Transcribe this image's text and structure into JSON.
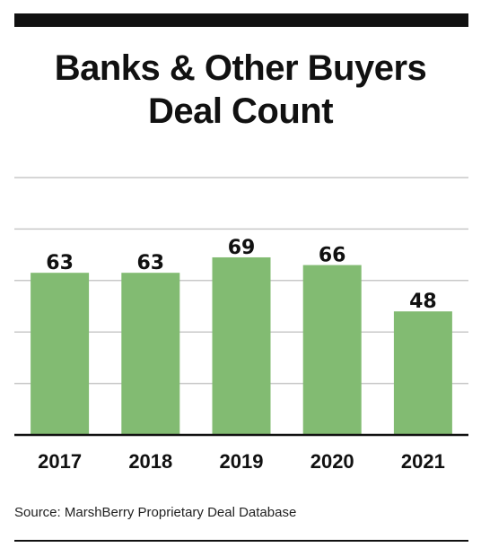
{
  "title_lines": [
    "Banks & Other Buyers",
    "Deal Count"
  ],
  "source": "Source: MarshBerry Proprietary Deal Database",
  "colors": {
    "bar": "#82bb72",
    "grid": "#c8c8c8",
    "axis": "#111111",
    "text": "#111111"
  },
  "chart_data": {
    "type": "bar",
    "categories": [
      "2017",
      "2018",
      "2019",
      "2020",
      "2021"
    ],
    "values": [
      63,
      63,
      69,
      66,
      48
    ],
    "title": "Banks & Other Buyers Deal Count",
    "xlabel": "",
    "ylabel": "",
    "ylim": [
      0,
      100
    ],
    "grid": true,
    "data_labels": true,
    "legend": "none"
  }
}
